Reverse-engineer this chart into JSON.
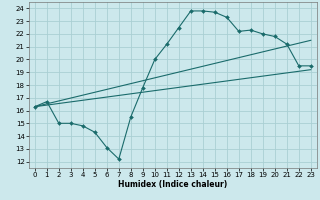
{
  "xlabel": "Humidex (Indice chaleur)",
  "bg_color": "#cce8ec",
  "grid_color": "#aacfd4",
  "line_color": "#1a6b6b",
  "xlim": [
    -0.5,
    23.5
  ],
  "ylim": [
    11.5,
    24.5
  ],
  "xticks": [
    0,
    1,
    2,
    3,
    4,
    5,
    6,
    7,
    8,
    9,
    10,
    11,
    12,
    13,
    14,
    15,
    16,
    17,
    18,
    19,
    20,
    21,
    22,
    23
  ],
  "yticks": [
    12,
    13,
    14,
    15,
    16,
    17,
    18,
    19,
    20,
    21,
    22,
    23,
    24
  ],
  "line1_x": [
    0,
    1,
    2,
    3,
    4,
    5,
    6,
    7,
    8,
    9,
    10,
    11,
    12,
    13,
    14,
    15,
    16,
    17,
    18,
    19,
    20,
    21,
    22,
    23
  ],
  "line1_y": [
    16.3,
    16.7,
    15.0,
    15.0,
    14.8,
    14.3,
    13.1,
    12.2,
    15.5,
    17.8,
    20.0,
    21.2,
    22.5,
    23.8,
    23.8,
    23.7,
    23.3,
    22.2,
    22.3,
    22.0,
    21.8,
    21.2,
    19.5,
    19.5
  ],
  "line2_x": [
    0,
    23
  ],
  "line2_y": [
    16.3,
    21.5
  ],
  "line3_x": [
    0,
    23
  ],
  "line3_y": [
    16.3,
    19.2
  ]
}
